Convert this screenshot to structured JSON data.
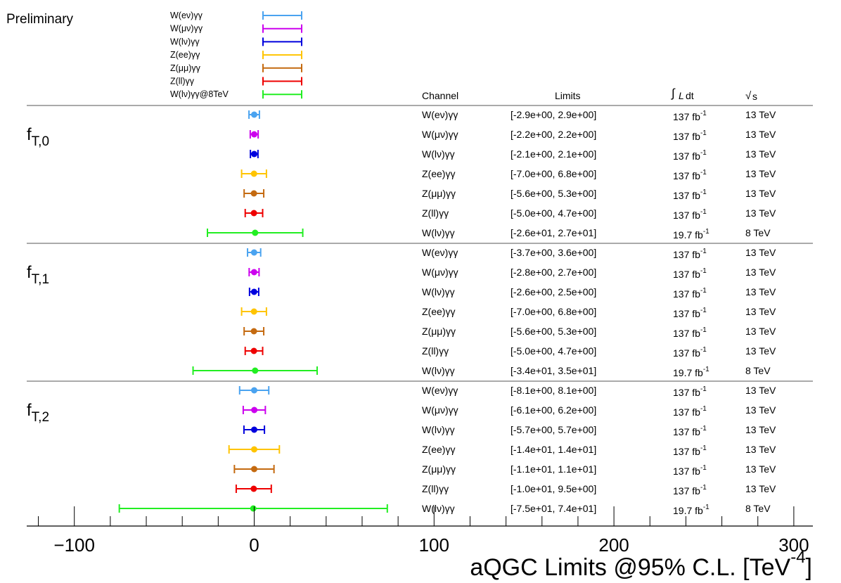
{
  "header": {
    "preliminary": "Preliminary",
    "col_channel": "Channel",
    "col_limits": "Limits",
    "col_lumi_integral": "∫",
    "col_lumi_L": "L",
    "col_lumi_dt": "dt",
    "col_sqrts_radical": "√",
    "col_sqrts_s": "s"
  },
  "legend": [
    {
      "label": "W(eν)γγ",
      "color": "#4aa3f0"
    },
    {
      "label": "W(μν)γγ",
      "color": "#cc00ee"
    },
    {
      "label": "W(lν)γγ",
      "color": "#0000dd"
    },
    {
      "label": "Z(ee)γγ",
      "color": "#ffc400"
    },
    {
      "label": "Z(μμ)γγ",
      "color": "#c46a10"
    },
    {
      "label": "Z(ll)γγ",
      "color": "#ee0000"
    },
    {
      "label": "W(lν)γγ@8TeV",
      "color": "#22ee22"
    }
  ],
  "lumi_exp": "-1",
  "chart_data": {
    "type": "scatter",
    "xlabel_main": "aQGC Limits @95% C.L. [TeV",
    "xlabel_exp": "-4",
    "xlabel_close": "]",
    "xlim": [
      -126,
      311
    ],
    "xticks": [
      "−100",
      "0",
      "100",
      "200",
      "300"
    ],
    "xtick_values": [
      -100,
      0,
      100,
      200,
      300
    ],
    "groups": [
      {
        "name": "f",
        "subscript": "T,0",
        "rows": [
          {
            "channel": "W(eν)γγ",
            "low": -2.9,
            "high": 2.9,
            "limits": "[-2.9e+00, 2.9e+00]",
            "lumi": "137 fb",
            "energy": "13 TeV",
            "color": "#4aa3f0"
          },
          {
            "channel": "W(μν)γγ",
            "low": -2.2,
            "high": 2.2,
            "limits": "[-2.2e+00, 2.2e+00]",
            "lumi": "137 fb",
            "energy": "13 TeV",
            "color": "#cc00ee"
          },
          {
            "channel": "W(lν)γγ",
            "low": -2.1,
            "high": 2.1,
            "limits": "[-2.1e+00, 2.1e+00]",
            "lumi": "137 fb",
            "energy": "13 TeV",
            "color": "#0000dd"
          },
          {
            "channel": "Z(ee)γγ",
            "low": -7.0,
            "high": 6.8,
            "limits": "[-7.0e+00, 6.8e+00]",
            "lumi": "137 fb",
            "energy": "13 TeV",
            "color": "#ffc400"
          },
          {
            "channel": "Z(μμ)γγ",
            "low": -5.6,
            "high": 5.3,
            "limits": "[-5.6e+00, 5.3e+00]",
            "lumi": "137 fb",
            "energy": "13 TeV",
            "color": "#c46a10"
          },
          {
            "channel": "Z(ll)γγ",
            "low": -5.0,
            "high": 4.7,
            "limits": "[-5.0e+00, 4.7e+00]",
            "lumi": "137 fb",
            "energy": "13 TeV",
            "color": "#ee0000"
          },
          {
            "channel": "W(lν)γγ",
            "low": -26,
            "high": 27,
            "limits": "[-2.6e+01, 2.7e+01]",
            "lumi": "19.7 fb",
            "energy": "8 TeV",
            "color": "#22ee22"
          }
        ]
      },
      {
        "name": "f",
        "subscript": "T,1",
        "rows": [
          {
            "channel": "W(eν)γγ",
            "low": -3.7,
            "high": 3.6,
            "limits": "[-3.7e+00, 3.6e+00]",
            "lumi": "137 fb",
            "energy": "13 TeV",
            "color": "#4aa3f0"
          },
          {
            "channel": "W(μν)γγ",
            "low": -2.8,
            "high": 2.7,
            "limits": "[-2.8e+00, 2.7e+00]",
            "lumi": "137 fb",
            "energy": "13 TeV",
            "color": "#cc00ee"
          },
          {
            "channel": "W(lν)γγ",
            "low": -2.6,
            "high": 2.5,
            "limits": "[-2.6e+00, 2.5e+00]",
            "lumi": "137 fb",
            "energy": "13 TeV",
            "color": "#0000dd"
          },
          {
            "channel": "Z(ee)γγ",
            "low": -7.0,
            "high": 6.8,
            "limits": "[-7.0e+00, 6.8e+00]",
            "lumi": "137 fb",
            "energy": "13 TeV",
            "color": "#ffc400"
          },
          {
            "channel": "Z(μμ)γγ",
            "low": -5.6,
            "high": 5.3,
            "limits": "[-5.6e+00, 5.3e+00]",
            "lumi": "137 fb",
            "energy": "13 TeV",
            "color": "#c46a10"
          },
          {
            "channel": "Z(ll)γγ",
            "low": -5.0,
            "high": 4.7,
            "limits": "[-5.0e+00, 4.7e+00]",
            "lumi": "137 fb",
            "energy": "13 TeV",
            "color": "#ee0000"
          },
          {
            "channel": "W(lν)γγ",
            "low": -34,
            "high": 35,
            "limits": "[-3.4e+01, 3.5e+01]",
            "lumi": "19.7 fb",
            "energy": "8 TeV",
            "color": "#22ee22"
          }
        ]
      },
      {
        "name": "f",
        "subscript": "T,2",
        "rows": [
          {
            "channel": "W(eν)γγ",
            "low": -8.1,
            "high": 8.1,
            "limits": "[-8.1e+00, 8.1e+00]",
            "lumi": "137 fb",
            "energy": "13 TeV",
            "color": "#4aa3f0"
          },
          {
            "channel": "W(μν)γγ",
            "low": -6.1,
            "high": 6.2,
            "limits": "[-6.1e+00, 6.2e+00]",
            "lumi": "137 fb",
            "energy": "13 TeV",
            "color": "#cc00ee"
          },
          {
            "channel": "W(lν)γγ",
            "low": -5.7,
            "high": 5.7,
            "limits": "[-5.7e+00, 5.7e+00]",
            "lumi": "137 fb",
            "energy": "13 TeV",
            "color": "#0000dd"
          },
          {
            "channel": "Z(ee)γγ",
            "low": -14,
            "high": 14,
            "limits": "[-1.4e+01, 1.4e+01]",
            "lumi": "137 fb",
            "energy": "13 TeV",
            "color": "#ffc400"
          },
          {
            "channel": "Z(μμ)γγ",
            "low": -11,
            "high": 11,
            "limits": "[-1.1e+01, 1.1e+01]",
            "lumi": "137 fb",
            "energy": "13 TeV",
            "color": "#c46a10"
          },
          {
            "channel": "Z(ll)γγ",
            "low": -10,
            "high": 9.5,
            "limits": "[-1.0e+01, 9.5e+00]",
            "lumi": "137 fb",
            "energy": "13 TeV",
            "color": "#ee0000"
          },
          {
            "channel": "W(lν)γγ",
            "low": -75,
            "high": 74,
            "limits": "[-7.5e+01, 7.4e+01]",
            "lumi": "19.7 fb",
            "energy": "8 TeV",
            "color": "#22ee22"
          }
        ]
      }
    ]
  }
}
